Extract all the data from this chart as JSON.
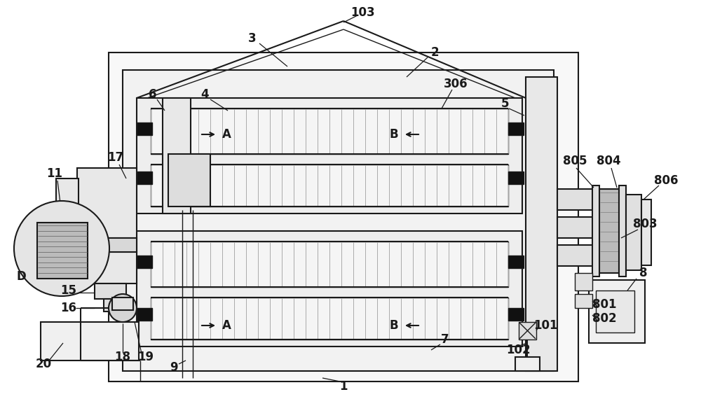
{
  "bg_color": "#ffffff",
  "lc": "#1a1a1a",
  "figsize": [
    10.0,
    5.9
  ],
  "dpi": 100,
  "xlim": [
    0,
    1000
  ],
  "ylim": [
    0,
    590
  ]
}
